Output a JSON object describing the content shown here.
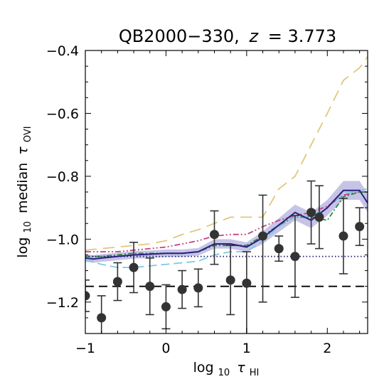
{
  "chart_data": {
    "type": "line",
    "title": "QB2000−330, z = 3.773",
    "title_parts": {
      "name": "QB2000−330,",
      "zvar": "z",
      "zval": "= 3.773"
    },
    "xlabel": "log10 τHI",
    "xlabel_parts": {
      "pre": "log",
      "sub": "10",
      "tau": "τ",
      "tsub": "HI"
    },
    "ylabel": "log10 median τOVI",
    "ylabel_parts": {
      "pre": "log",
      "sub": "10",
      "mid": "median",
      "tau": "τ",
      "tsub": "OVI"
    },
    "xlim": [
      -1,
      2.5
    ],
    "ylim": [
      -1.3,
      -0.4
    ],
    "x_ticks": [
      -1,
      0,
      1,
      2
    ],
    "x_tick_labels": [
      "−1",
      "0",
      "1",
      "2"
    ],
    "y_ticks": [
      -1.2,
      -1.0,
      -0.8,
      -0.6,
      -0.4
    ],
    "y_tick_labels": [
      "−1.2",
      "−1.0",
      "−0.8",
      "−0.6",
      "−0.4"
    ],
    "grid": false,
    "observed_points": {
      "color": "#333333",
      "x": [
        -1.0,
        -0.8,
        -0.6,
        -0.4,
        -0.2,
        0.0,
        0.2,
        0.4,
        0.6,
        0.8,
        1.0,
        1.2,
        1.4,
        1.6,
        1.8,
        1.9,
        2.2,
        2.4
      ],
      "y": [
        -1.18,
        -1.25,
        -1.135,
        -1.09,
        -1.15,
        -1.215,
        -1.16,
        -1.155,
        -0.985,
        -1.13,
        -1.14,
        -0.99,
        -1.03,
        -1.055,
        -0.915,
        -0.93,
        -0.99,
        -0.96
      ],
      "err_low": [
        0.05,
        0.07,
        0.06,
        0.08,
        0.09,
        0.07,
        0.06,
        0.06,
        0.095,
        0.11,
        0.17,
        0.21,
        0.04,
        0.13,
        0.1,
        0.1,
        0.12,
        0.06
      ],
      "err_high": [
        0.05,
        0.07,
        0.06,
        0.08,
        0.09,
        0.07,
        0.06,
        0.06,
        0.075,
        0.11,
        0.1,
        0.13,
        0.04,
        0.13,
        0.1,
        0.1,
        0.12,
        0.06
      ]
    },
    "series": [
      {
        "style": "solid",
        "color": "#2b1e7e",
        "band_color": "#b3b0dd",
        "x": [
          -1.0,
          -0.9,
          -0.8,
          -0.6,
          -0.4,
          -0.2,
          0.0,
          0.2,
          0.4,
          0.6,
          0.8,
          1.0,
          1.2,
          1.4,
          1.6,
          1.8,
          1.9,
          2.0,
          2.2,
          2.4,
          2.5
        ],
        "y": [
          -1.06,
          -1.063,
          -1.06,
          -1.055,
          -1.05,
          -1.048,
          -1.045,
          -1.045,
          -1.04,
          -1.015,
          -1.015,
          -1.025,
          -0.995,
          -0.955,
          -0.915,
          -0.94,
          -0.92,
          -0.9,
          -0.845,
          -0.845,
          -0.885
        ],
        "band": [
          0.012,
          0.012,
          0.012,
          0.012,
          0.012,
          0.012,
          0.012,
          0.012,
          0.012,
          0.015,
          0.015,
          0.015,
          0.02,
          0.022,
          0.025,
          0.025,
          0.025,
          0.025,
          0.03,
          0.03,
          0.03
        ]
      },
      {
        "style": "long-dash",
        "color": "#e0c77e",
        "x": [
          -1.0,
          -0.8,
          -0.6,
          -0.4,
          -0.2,
          0.0,
          0.2,
          0.4,
          0.6,
          0.8,
          1.0,
          1.2,
          1.4,
          1.6,
          1.8,
          2.0,
          2.2,
          2.4,
          2.5
        ],
        "y": [
          -1.035,
          -1.03,
          -1.025,
          -1.02,
          -1.015,
          -1.005,
          -0.985,
          -0.97,
          -0.95,
          -0.93,
          -0.93,
          -0.93,
          -0.84,
          -0.8,
          -0.7,
          -0.6,
          -0.495,
          -0.455,
          -0.42
        ]
      },
      {
        "style": "dash-dot-dot",
        "color": "#c43f85",
        "x": [
          -1.0,
          -0.8,
          -0.6,
          -0.4,
          -0.2,
          0.0,
          0.2,
          0.4,
          0.6,
          0.8,
          1.0,
          1.2,
          1.4,
          1.6,
          1.8,
          2.0,
          2.2,
          2.4,
          2.5
        ],
        "y": [
          -1.04,
          -1.04,
          -1.04,
          -1.035,
          -1.03,
          -1.025,
          -1.015,
          -1.005,
          -0.99,
          -0.985,
          -0.985,
          -0.96,
          -0.94,
          -0.925,
          -0.915,
          -0.895,
          -0.86,
          -0.85,
          -0.85
        ]
      },
      {
        "style": "dash-dot",
        "color": "#2b8a3e",
        "x": [
          -1.0,
          -0.8,
          -0.6,
          -0.4,
          -0.2,
          0.0,
          0.2,
          0.4,
          0.6,
          0.8,
          1.0,
          1.2,
          1.4,
          1.6,
          1.8,
          2.0,
          2.2,
          2.4,
          2.5
        ],
        "y": [
          -1.055,
          -1.055,
          -1.05,
          -1.045,
          -1.045,
          -1.045,
          -1.045,
          -1.04,
          -1.02,
          -1.02,
          -1.02,
          -0.99,
          -0.955,
          -0.93,
          -0.93,
          -0.94,
          -0.865,
          -0.85,
          -0.85
        ]
      },
      {
        "style": "dash",
        "color": "#7ec8e3",
        "x": [
          -1.0,
          -0.8,
          -0.6,
          -0.4,
          -0.2,
          0.0,
          0.2,
          0.4,
          0.6,
          0.8,
          1.0,
          1.2,
          1.4,
          1.6,
          1.8,
          2.0,
          2.2,
          2.4,
          2.5
        ],
        "y": [
          -1.065,
          -1.08,
          -1.09,
          -1.09,
          -1.085,
          -1.08,
          -1.075,
          -1.07,
          -1.05,
          -1.04,
          -1.04,
          -1.005,
          -0.96,
          -0.93,
          -0.925,
          -0.9,
          -0.855,
          -0.845,
          -0.84
        ]
      },
      {
        "style": "dotted",
        "color": "#1c1c66",
        "x": [
          -1.0,
          2.5
        ],
        "y": [
          -1.055,
          -1.055
        ]
      },
      {
        "style": "dashed-black",
        "color": "#000000",
        "x": [
          -1.0,
          2.5
        ],
        "y": [
          -1.15,
          -1.15
        ]
      }
    ]
  }
}
